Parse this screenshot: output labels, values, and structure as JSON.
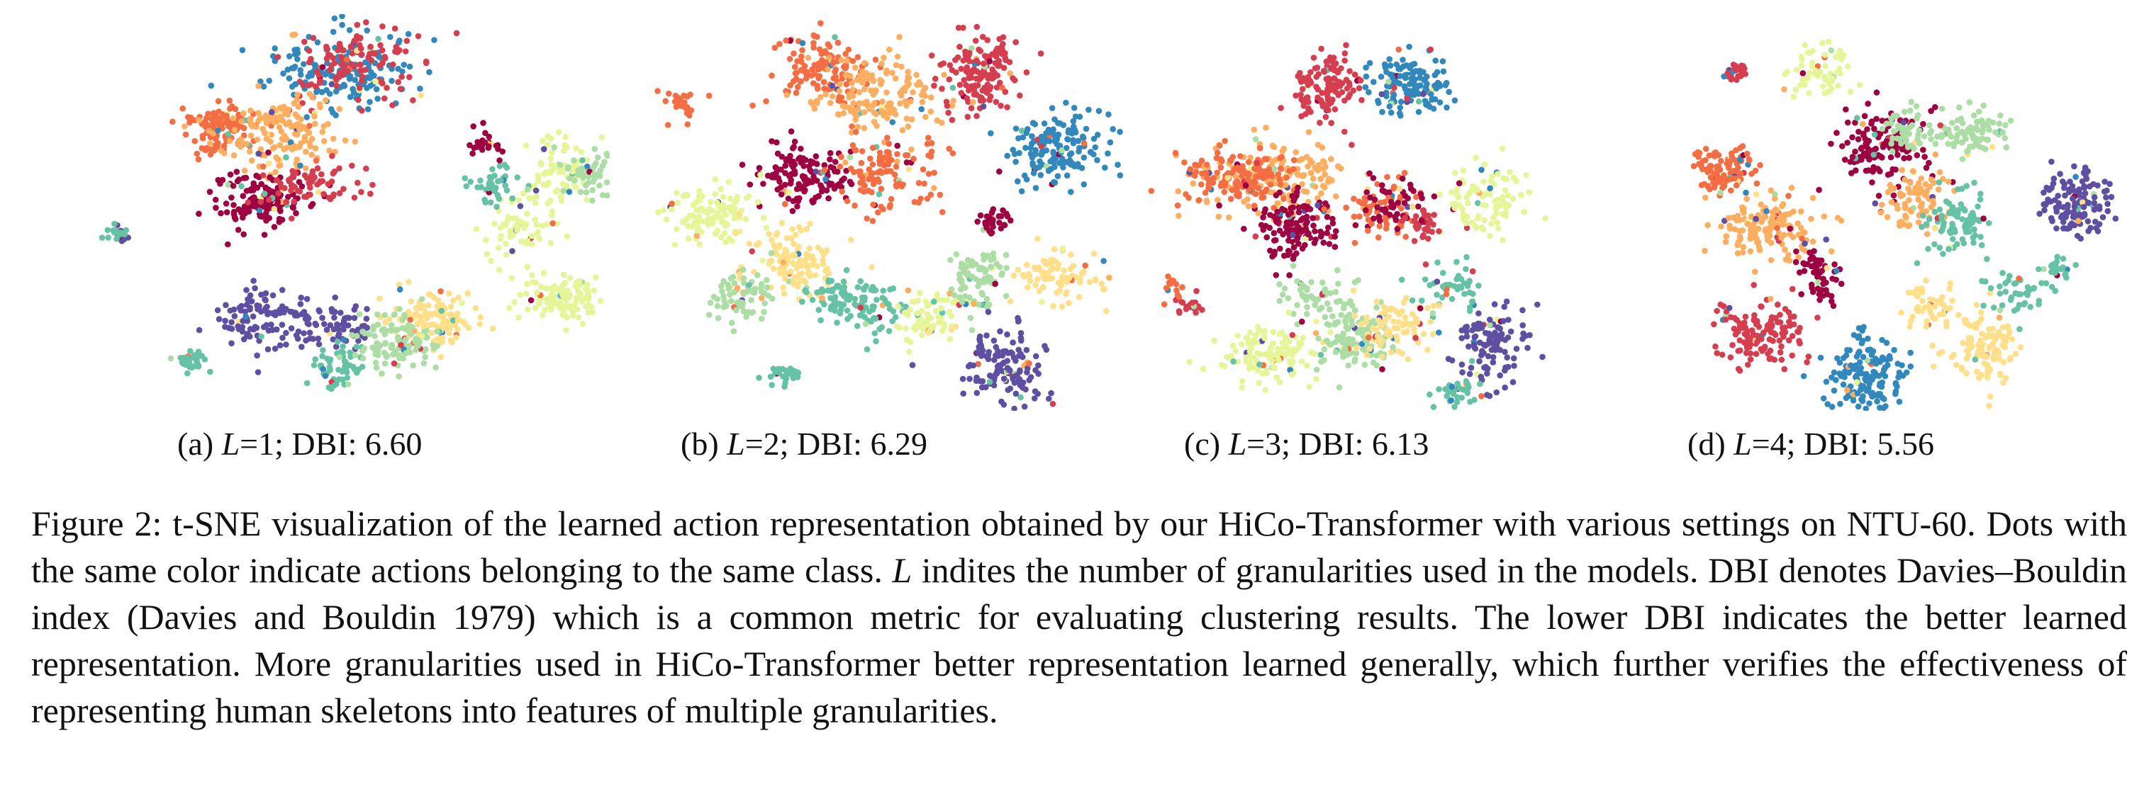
{
  "palette": [
    "#9e0142",
    "#d53e4f",
    "#f46d43",
    "#fdae61",
    "#fee08b",
    "#e6f598",
    "#abdda4",
    "#66c2a5",
    "#3288bd",
    "#5e4fa2"
  ],
  "panels": [
    {
      "label": "(a)",
      "lvar": "L",
      "lval": "=1; DBI: 6.60",
      "L": 1,
      "DBI": 6.6
    },
    {
      "label": "(b)",
      "lvar": "L",
      "lval": "=2; DBI: 6.29",
      "L": 2,
      "DBI": 6.29
    },
    {
      "label": "(c)",
      "lvar": "L",
      "lval": "=3; DBI: 6.13",
      "L": 3,
      "DBI": 6.13
    },
    {
      "label": "(d)",
      "lvar": "L",
      "lval": "=4; DBI: 5.56",
      "L": 4,
      "DBI": 5.56
    }
  ],
  "caption": {
    "part1": "Figure 2: t-SNE visualization of the learned action representation obtained by our HiCo-Transformer with various settings on NTU-60. Dots with the same color indicate actions belonging to the same class. ",
    "var": "L",
    "part2": " indites the number of granularities used in the models. DBI denotes Davies–Bouldin index (Davies and Bouldin 1979) which is a common metric for evaluating clustering results. The lower DBI indicates the better learned representation. More granularities used in HiCo-Transformer better representation learned generally, which further verifies the effectiveness of representing human skeletons into features of multiple granularities."
  }
}
